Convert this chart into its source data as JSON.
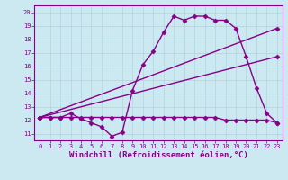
{
  "background_color": "#cce8f0",
  "line_color": "#880088",
  "marker": "D",
  "markersize": 2.5,
  "linewidth": 1.0,
  "xlabel": "Windchill (Refroidissement éolien,°C)",
  "xlabel_fontsize": 6.5,
  "ylim": [
    10.5,
    20.5
  ],
  "xlim": [
    -0.5,
    23.5
  ],
  "yticks": [
    11,
    12,
    13,
    14,
    15,
    16,
    17,
    18,
    19,
    20
  ],
  "xticks": [
    0,
    1,
    2,
    3,
    4,
    5,
    6,
    7,
    8,
    9,
    10,
    11,
    12,
    13,
    14,
    15,
    16,
    17,
    18,
    19,
    20,
    21,
    22,
    23
  ],
  "tick_fontsize": 5.0,
  "grid_color": "#b0d4dc",
  "line1_x": [
    0,
    1,
    2,
    3,
    4,
    5,
    6,
    7,
    8,
    9,
    10,
    11,
    12,
    13,
    14,
    15,
    16,
    17,
    18,
    19,
    20,
    21,
    22,
    23
  ],
  "line1_y": [
    12.2,
    12.2,
    12.2,
    12.5,
    12.1,
    11.8,
    11.5,
    10.8,
    11.1,
    14.2,
    16.1,
    17.1,
    18.5,
    19.7,
    19.4,
    19.7,
    19.7,
    19.4,
    19.4,
    18.8,
    16.7,
    14.4,
    12.5,
    11.8
  ],
  "line2_x": [
    0,
    1,
    2,
    3,
    4,
    5,
    6,
    7,
    8,
    9,
    10,
    11,
    12,
    13,
    14,
    15,
    16,
    17,
    18,
    19,
    20,
    21,
    22,
    23
  ],
  "line2_y": [
    12.2,
    12.2,
    12.2,
    12.2,
    12.2,
    12.2,
    12.2,
    12.2,
    12.2,
    12.2,
    12.2,
    12.2,
    12.2,
    12.2,
    12.2,
    12.2,
    12.2,
    12.2,
    12.0,
    12.0,
    12.0,
    12.0,
    12.0,
    11.8
  ],
  "line3_x": [
    0,
    23
  ],
  "line3_y": [
    12.2,
    18.8
  ],
  "line4_x": [
    0,
    23
  ],
  "line4_y": [
    12.2,
    16.7
  ]
}
